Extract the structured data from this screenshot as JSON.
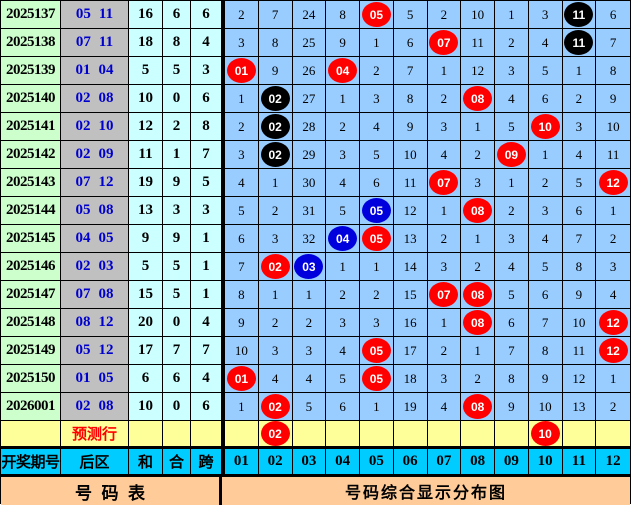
{
  "chart_data": {
    "type": "table",
    "title": "号码表 / 号码综合显示分布图",
    "palette": {
      "green": "#CCFFCC",
      "gray": "#C0C0C0",
      "cyanlight": "#CCFFFF",
      "gridblue": "#99CCFF",
      "yellow": "#FFFF99",
      "headercyan": "#00CCFF",
      "orange": "#FFCC99",
      "backnum": "#0000CC",
      "red": "#FF0000",
      "ball_red": "#FF0000",
      "ball_black": "#000000",
      "ball_blue": "#0000DD"
    },
    "columns": {
      "period": "开奖期号",
      "back": "后区",
      "sum": "和",
      "tail": "合",
      "span": "跨",
      "numbers": [
        "01",
        "02",
        "03",
        "04",
        "05",
        "06",
        "07",
        "08",
        "09",
        "10",
        "11",
        "12"
      ]
    },
    "footer": {
      "left_title": "号  码  表",
      "right_title": "号码综合显示分布图"
    },
    "prediction": {
      "label": "预测行",
      "cells": [
        null,
        {
          "b": "02",
          "c": "red"
        },
        null,
        null,
        null,
        null,
        null,
        null,
        null,
        {
          "b": "10",
          "c": "red"
        },
        null,
        null
      ]
    },
    "rows": [
      {
        "period": "2025137",
        "back": [
          "05",
          "11"
        ],
        "sum": "16",
        "tail": "6",
        "span": "6",
        "cells": [
          {
            "m": "2"
          },
          {
            "m": "7"
          },
          {
            "m": "24"
          },
          {
            "m": "8"
          },
          {
            "b": "05",
            "c": "red"
          },
          {
            "m": "5"
          },
          {
            "m": "2"
          },
          {
            "m": "10"
          },
          {
            "m": "1"
          },
          {
            "m": "3"
          },
          {
            "b": "11",
            "c": "black"
          },
          {
            "m": "6"
          }
        ]
      },
      {
        "period": "2025138",
        "back": [
          "07",
          "11"
        ],
        "sum": "18",
        "tail": "8",
        "span": "4",
        "cells": [
          {
            "m": "3"
          },
          {
            "m": "8"
          },
          {
            "m": "25"
          },
          {
            "m": "9"
          },
          {
            "m": "1"
          },
          {
            "m": "6"
          },
          {
            "b": "07",
            "c": "red"
          },
          {
            "m": "11"
          },
          {
            "m": "2"
          },
          {
            "m": "4"
          },
          {
            "b": "11",
            "c": "black"
          },
          {
            "m": "7"
          }
        ]
      },
      {
        "period": "2025139",
        "back": [
          "01",
          "04"
        ],
        "sum": "5",
        "tail": "5",
        "span": "3",
        "cells": [
          {
            "b": "01",
            "c": "red"
          },
          {
            "m": "9"
          },
          {
            "m": "26"
          },
          {
            "b": "04",
            "c": "red"
          },
          {
            "m": "2"
          },
          {
            "m": "7"
          },
          {
            "m": "1"
          },
          {
            "m": "12"
          },
          {
            "m": "3"
          },
          {
            "m": "5"
          },
          {
            "m": "1"
          },
          {
            "m": "8"
          }
        ]
      },
      {
        "period": "2025140",
        "back": [
          "02",
          "08"
        ],
        "sum": "10",
        "tail": "0",
        "span": "6",
        "cells": [
          {
            "m": "1"
          },
          {
            "b": "02",
            "c": "black"
          },
          {
            "m": "27"
          },
          {
            "m": "1"
          },
          {
            "m": "3"
          },
          {
            "m": "8"
          },
          {
            "m": "2"
          },
          {
            "b": "08",
            "c": "red"
          },
          {
            "m": "4"
          },
          {
            "m": "6"
          },
          {
            "m": "2"
          },
          {
            "m": "9"
          }
        ]
      },
      {
        "period": "2025141",
        "back": [
          "02",
          "10"
        ],
        "sum": "12",
        "tail": "2",
        "span": "8",
        "cells": [
          {
            "m": "2"
          },
          {
            "b": "02",
            "c": "black"
          },
          {
            "m": "28"
          },
          {
            "m": "2"
          },
          {
            "m": "4"
          },
          {
            "m": "9"
          },
          {
            "m": "3"
          },
          {
            "m": "1"
          },
          {
            "m": "5"
          },
          {
            "b": "10",
            "c": "red"
          },
          {
            "m": "3"
          },
          {
            "m": "10"
          }
        ]
      },
      {
        "period": "2025142",
        "back": [
          "02",
          "09"
        ],
        "sum": "11",
        "tail": "1",
        "span": "7",
        "cells": [
          {
            "m": "3"
          },
          {
            "b": "02",
            "c": "black"
          },
          {
            "m": "29"
          },
          {
            "m": "3"
          },
          {
            "m": "5"
          },
          {
            "m": "10"
          },
          {
            "m": "4"
          },
          {
            "m": "2"
          },
          {
            "b": "09",
            "c": "red"
          },
          {
            "m": "1"
          },
          {
            "m": "4"
          },
          {
            "m": "11"
          }
        ]
      },
      {
        "period": "2025143",
        "back": [
          "07",
          "12"
        ],
        "sum": "19",
        "tail": "9",
        "span": "5",
        "cells": [
          {
            "m": "4"
          },
          {
            "m": "1"
          },
          {
            "m": "30"
          },
          {
            "m": "4"
          },
          {
            "m": "6"
          },
          {
            "m": "11"
          },
          {
            "b": "07",
            "c": "red"
          },
          {
            "m": "3"
          },
          {
            "m": "1"
          },
          {
            "m": "2"
          },
          {
            "m": "5"
          },
          {
            "b": "12",
            "c": "red"
          }
        ]
      },
      {
        "period": "2025144",
        "back": [
          "05",
          "08"
        ],
        "sum": "13",
        "tail": "3",
        "span": "3",
        "cells": [
          {
            "m": "5"
          },
          {
            "m": "2"
          },
          {
            "m": "31"
          },
          {
            "m": "5"
          },
          {
            "b": "05",
            "c": "blue"
          },
          {
            "m": "12"
          },
          {
            "m": "1"
          },
          {
            "b": "08",
            "c": "red"
          },
          {
            "m": "2"
          },
          {
            "m": "3"
          },
          {
            "m": "6"
          },
          {
            "m": "1"
          }
        ]
      },
      {
        "period": "2025145",
        "back": [
          "04",
          "05"
        ],
        "sum": "9",
        "tail": "9",
        "span": "1",
        "cells": [
          {
            "m": "6"
          },
          {
            "m": "3"
          },
          {
            "m": "32"
          },
          {
            "b": "04",
            "c": "blue"
          },
          {
            "b": "05",
            "c": "red"
          },
          {
            "m": "13"
          },
          {
            "m": "2"
          },
          {
            "m": "1"
          },
          {
            "m": "3"
          },
          {
            "m": "4"
          },
          {
            "m": "7"
          },
          {
            "m": "2"
          }
        ]
      },
      {
        "period": "2025146",
        "back": [
          "02",
          "03"
        ],
        "sum": "5",
        "tail": "5",
        "span": "1",
        "cells": [
          {
            "m": "7"
          },
          {
            "b": "02",
            "c": "red"
          },
          {
            "b": "03",
            "c": "blue"
          },
          {
            "m": "1"
          },
          {
            "m": "1"
          },
          {
            "m": "14"
          },
          {
            "m": "3"
          },
          {
            "m": "2"
          },
          {
            "m": "4"
          },
          {
            "m": "5"
          },
          {
            "m": "8"
          },
          {
            "m": "3"
          }
        ]
      },
      {
        "period": "2025147",
        "back": [
          "07",
          "08"
        ],
        "sum": "15",
        "tail": "5",
        "span": "1",
        "cells": [
          {
            "m": "8"
          },
          {
            "m": "1"
          },
          {
            "m": "1"
          },
          {
            "m": "2"
          },
          {
            "m": "2"
          },
          {
            "m": "15"
          },
          {
            "b": "07",
            "c": "red"
          },
          {
            "b": "08",
            "c": "red"
          },
          {
            "m": "5"
          },
          {
            "m": "6"
          },
          {
            "m": "9"
          },
          {
            "m": "4"
          }
        ]
      },
      {
        "period": "2025148",
        "back": [
          "08",
          "12"
        ],
        "sum": "20",
        "tail": "0",
        "span": "4",
        "cells": [
          {
            "m": "9"
          },
          {
            "m": "2"
          },
          {
            "m": "2"
          },
          {
            "m": "3"
          },
          {
            "m": "3"
          },
          {
            "m": "16"
          },
          {
            "m": "1"
          },
          {
            "b": "08",
            "c": "red"
          },
          {
            "m": "6"
          },
          {
            "m": "7"
          },
          {
            "m": "10"
          },
          {
            "b": "12",
            "c": "red"
          }
        ]
      },
      {
        "period": "2025149",
        "back": [
          "05",
          "12"
        ],
        "sum": "17",
        "tail": "7",
        "span": "7",
        "cells": [
          {
            "m": "10"
          },
          {
            "m": "3"
          },
          {
            "m": "3"
          },
          {
            "m": "4"
          },
          {
            "b": "05",
            "c": "red"
          },
          {
            "m": "17"
          },
          {
            "m": "2"
          },
          {
            "m": "1"
          },
          {
            "m": "7"
          },
          {
            "m": "8"
          },
          {
            "m": "11"
          },
          {
            "b": "12",
            "c": "red"
          }
        ]
      },
      {
        "period": "2025150",
        "back": [
          "01",
          "05"
        ],
        "sum": "6",
        "tail": "6",
        "span": "4",
        "cells": [
          {
            "b": "01",
            "c": "red"
          },
          {
            "m": "4"
          },
          {
            "m": "4"
          },
          {
            "m": "5"
          },
          {
            "b": "05",
            "c": "red"
          },
          {
            "m": "18"
          },
          {
            "m": "3"
          },
          {
            "m": "2"
          },
          {
            "m": "8"
          },
          {
            "m": "9"
          },
          {
            "m": "12"
          },
          {
            "m": "1"
          }
        ]
      },
      {
        "period": "2026001",
        "back": [
          "02",
          "08"
        ],
        "sum": "10",
        "tail": "0",
        "span": "6",
        "cells": [
          {
            "m": "1"
          },
          {
            "b": "02",
            "c": "red"
          },
          {
            "m": "5"
          },
          {
            "m": "6"
          },
          {
            "m": "1"
          },
          {
            "m": "19"
          },
          {
            "m": "4"
          },
          {
            "b": "08",
            "c": "red"
          },
          {
            "m": "9"
          },
          {
            "m": "10"
          },
          {
            "m": "13"
          },
          {
            "m": "2"
          }
        ]
      }
    ]
  }
}
